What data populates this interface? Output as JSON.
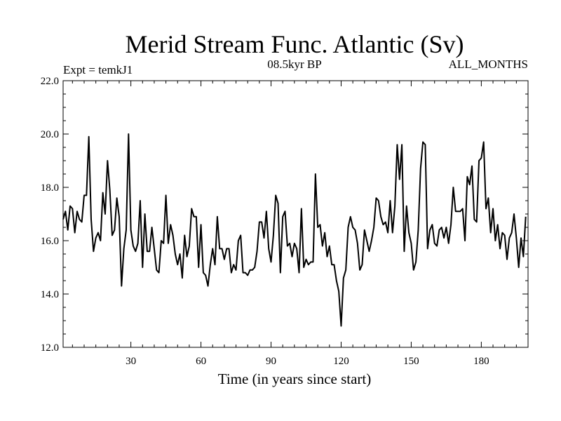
{
  "chart_data": {
    "type": "line",
    "title": "Merid Stream Func. Atlantic (Sv)",
    "subtitle_left": "Expt = temkJ1",
    "subtitle_center": "08.5kyr BP",
    "subtitle_right": "ALL_MONTHS",
    "xlabel": "Time (in years since start)",
    "ylabel": "",
    "xlim": [
      1,
      200
    ],
    "ylim": [
      12.0,
      22.0
    ],
    "x_ticks": [
      30,
      60,
      90,
      120,
      150,
      180
    ],
    "x_tick_labels": [
      "30",
      "60",
      "90",
      "120",
      "150",
      "180"
    ],
    "y_ticks": [
      12.0,
      14.0,
      16.0,
      18.0,
      20.0,
      22.0
    ],
    "y_tick_labels": [
      "12.0",
      "14.0",
      "16.0",
      "18.0",
      "20.0",
      "22.0"
    ],
    "series": [
      {
        "name": "Merid Stream Func. Atlantic",
        "x_start": 1,
        "x_step": 1,
        "values": [
          16.8,
          17.1,
          16.4,
          17.3,
          17.2,
          16.3,
          17.1,
          16.8,
          16.7,
          17.7,
          17.7,
          19.9,
          16.8,
          15.6,
          16.1,
          16.3,
          16.0,
          17.8,
          17.0,
          19.0,
          17.9,
          16.2,
          16.4,
          17.6,
          16.9,
          14.3,
          15.7,
          16.4,
          20.0,
          16.4,
          15.8,
          15.6,
          15.9,
          17.5,
          15.0,
          17.0,
          15.6,
          15.6,
          16.5,
          15.7,
          14.9,
          14.8,
          16.0,
          15.9,
          17.7,
          15.9,
          16.6,
          16.2,
          15.5,
          15.1,
          15.5,
          14.6,
          16.2,
          15.4,
          15.8,
          17.2,
          16.9,
          16.9,
          15.0,
          16.6,
          14.8,
          14.7,
          14.3,
          15.1,
          15.7,
          15.1,
          16.9,
          15.7,
          15.7,
          15.3,
          15.7,
          15.7,
          14.8,
          15.1,
          14.9,
          16.0,
          16.2,
          14.8,
          14.8,
          14.7,
          14.9,
          14.9,
          15.0,
          15.6,
          16.7,
          16.7,
          16.1,
          17.1,
          15.7,
          15.2,
          16.2,
          17.7,
          17.4,
          14.8,
          16.9,
          17.1,
          15.8,
          15.9,
          15.4,
          15.9,
          15.7,
          14.8,
          17.2,
          15.0,
          15.3,
          15.1,
          15.2,
          15.2,
          18.5,
          16.5,
          16.6,
          15.8,
          16.3,
          15.4,
          15.8,
          15.1,
          15.1,
          14.5,
          14.1,
          12.8,
          14.6,
          14.9,
          16.5,
          16.9,
          16.5,
          16.4,
          15.9,
          14.9,
          15.1,
          16.4,
          16.0,
          15.6,
          16.0,
          16.5,
          17.6,
          17.5,
          16.9,
          16.6,
          16.7,
          16.3,
          17.5,
          16.3,
          17.3,
          19.6,
          18.3,
          19.6,
          15.6,
          17.3,
          16.3,
          15.9,
          14.9,
          15.2,
          16.4,
          18.7,
          19.7,
          19.6,
          15.7,
          16.4,
          16.6,
          15.9,
          15.8,
          16.4,
          16.5,
          16.1,
          16.5,
          15.9,
          16.6,
          18.0,
          17.1,
          17.1,
          17.1,
          17.2,
          16.0,
          18.4,
          18.1,
          18.8,
          16.8,
          16.7,
          19.0,
          19.1,
          19.7,
          17.2,
          17.6,
          16.3,
          17.2,
          16.0,
          16.6,
          15.7,
          16.3,
          16.2,
          15.3,
          16.1,
          16.3,
          17.0,
          16.1,
          15.0,
          16.1,
          15.4,
          16.9
        ]
      }
    ]
  }
}
